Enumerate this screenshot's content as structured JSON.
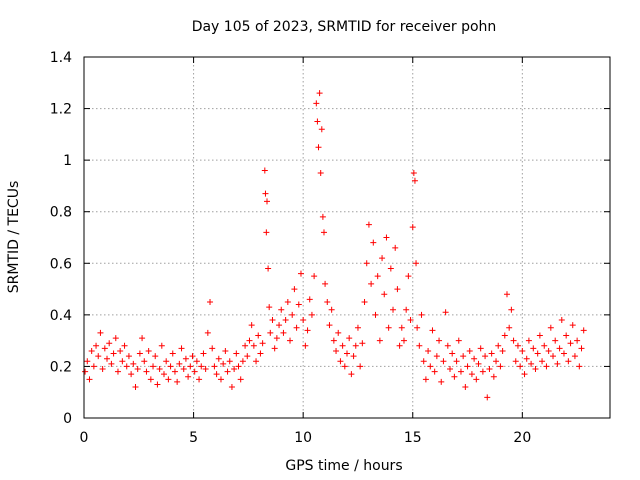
{
  "chart_data": {
    "type": "scatter",
    "title": "Day 105 of 2023, SRMTID for receiver pohn",
    "xlabel": "GPS time / hours",
    "ylabel": "SRMTID / TECUs",
    "xlim": [
      0,
      24
    ],
    "ylim": [
      0,
      1.4
    ],
    "xticks": [
      0,
      5,
      10,
      15,
      20
    ],
    "xtick_labels": [
      "0",
      "5",
      "10",
      "15",
      "20"
    ],
    "yticks": [
      0,
      0.2,
      0.4,
      0.6,
      0.8,
      1.0,
      1.2,
      1.4
    ],
    "ytick_labels": [
      "0",
      "0.2",
      "0.4",
      "0.6",
      "0.8",
      "1",
      "1.2",
      "1.4"
    ],
    "grid": true,
    "marker": "+",
    "marker_color": "#ff0000",
    "series": [
      {
        "name": "SRMTID",
        "points": [
          [
            0.05,
            0.18
          ],
          [
            0.15,
            0.22
          ],
          [
            0.25,
            0.15
          ],
          [
            0.35,
            0.26
          ],
          [
            0.45,
            0.2
          ],
          [
            0.55,
            0.28
          ],
          [
            0.65,
            0.24
          ],
          [
            0.75,
            0.33
          ],
          [
            0.85,
            0.19
          ],
          [
            0.95,
            0.27
          ],
          [
            1.05,
            0.23
          ],
          [
            1.15,
            0.29
          ],
          [
            1.25,
            0.21
          ],
          [
            1.35,
            0.25
          ],
          [
            1.45,
            0.31
          ],
          [
            1.55,
            0.18
          ],
          [
            1.65,
            0.26
          ],
          [
            1.75,
            0.22
          ],
          [
            1.85,
            0.28
          ],
          [
            1.95,
            0.2
          ],
          [
            2.05,
            0.24
          ],
          [
            2.15,
            0.17
          ],
          [
            2.25,
            0.21
          ],
          [
            2.35,
            0.12
          ],
          [
            2.45,
            0.19
          ],
          [
            2.55,
            0.25
          ],
          [
            2.65,
            0.31
          ],
          [
            2.75,
            0.22
          ],
          [
            2.85,
            0.18
          ],
          [
            2.95,
            0.26
          ],
          [
            3.05,
            0.15
          ],
          [
            3.15,
            0.2
          ],
          [
            3.25,
            0.24
          ],
          [
            3.35,
            0.13
          ],
          [
            3.45,
            0.19
          ],
          [
            3.55,
            0.28
          ],
          [
            3.65,
            0.17
          ],
          [
            3.75,
            0.22
          ],
          [
            3.85,
            0.15
          ],
          [
            3.95,
            0.2
          ],
          [
            4.05,
            0.25
          ],
          [
            4.15,
            0.18
          ],
          [
            4.25,
            0.14
          ],
          [
            4.35,
            0.21
          ],
          [
            4.45,
            0.27
          ],
          [
            4.55,
            0.19
          ],
          [
            4.65,
            0.23
          ],
          [
            4.75,
            0.16
          ],
          [
            4.85,
            0.2
          ],
          [
            4.95,
            0.24
          ],
          [
            5.05,
            0.18
          ],
          [
            5.15,
            0.22
          ],
          [
            5.25,
            0.15
          ],
          [
            5.35,
            0.2
          ],
          [
            5.45,
            0.25
          ],
          [
            5.55,
            0.19
          ],
          [
            5.65,
            0.33
          ],
          [
            5.75,
            0.45
          ],
          [
            5.85,
            0.27
          ],
          [
            5.95,
            0.2
          ],
          [
            6.05,
            0.17
          ],
          [
            6.15,
            0.23
          ],
          [
            6.25,
            0.15
          ],
          [
            6.35,
            0.21
          ],
          [
            6.45,
            0.26
          ],
          [
            6.55,
            0.18
          ],
          [
            6.65,
            0.22
          ],
          [
            6.75,
            0.12
          ],
          [
            6.85,
            0.19
          ],
          [
            6.95,
            0.25
          ],
          [
            7.05,
            0.2
          ],
          [
            7.15,
            0.15
          ],
          [
            7.25,
            0.22
          ],
          [
            7.35,
            0.28
          ],
          [
            7.45,
            0.24
          ],
          [
            7.55,
            0.3
          ],
          [
            7.65,
            0.36
          ],
          [
            7.75,
            0.28
          ],
          [
            7.85,
            0.22
          ],
          [
            7.95,
            0.32
          ],
          [
            8.05,
            0.25
          ],
          [
            8.15,
            0.29
          ],
          [
            8.25,
            0.96
          ],
          [
            8.28,
            0.87
          ],
          [
            8.32,
            0.72
          ],
          [
            8.35,
            0.84
          ],
          [
            8.4,
            0.58
          ],
          [
            8.45,
            0.43
          ],
          [
            8.5,
            0.33
          ],
          [
            8.6,
            0.38
          ],
          [
            8.7,
            0.27
          ],
          [
            8.8,
            0.31
          ],
          [
            8.9,
            0.36
          ],
          [
            9.0,
            0.42
          ],
          [
            9.1,
            0.33
          ],
          [
            9.2,
            0.38
          ],
          [
            9.3,
            0.45
          ],
          [
            9.4,
            0.3
          ],
          [
            9.5,
            0.4
          ],
          [
            9.6,
            0.5
          ],
          [
            9.7,
            0.35
          ],
          [
            9.8,
            0.44
          ],
          [
            9.9,
            0.56
          ],
          [
            10.0,
            0.38
          ],
          [
            10.1,
            0.28
          ],
          [
            10.2,
            0.34
          ],
          [
            10.3,
            0.46
          ],
          [
            10.4,
            0.4
          ],
          [
            10.5,
            0.55
          ],
          [
            10.6,
            1.22
          ],
          [
            10.65,
            1.15
          ],
          [
            10.7,
            1.05
          ],
          [
            10.75,
            1.26
          ],
          [
            10.8,
            0.95
          ],
          [
            10.85,
            1.12
          ],
          [
            10.9,
            0.78
          ],
          [
            10.95,
            0.72
          ],
          [
            11.0,
            0.52
          ],
          [
            11.1,
            0.45
          ],
          [
            11.2,
            0.36
          ],
          [
            11.3,
            0.42
          ],
          [
            11.4,
            0.3
          ],
          [
            11.5,
            0.26
          ],
          [
            11.6,
            0.33
          ],
          [
            11.7,
            0.22
          ],
          [
            11.8,
            0.28
          ],
          [
            11.9,
            0.2
          ],
          [
            12.0,
            0.25
          ],
          [
            12.1,
            0.31
          ],
          [
            12.2,
            0.17
          ],
          [
            12.3,
            0.24
          ],
          [
            12.4,
            0.28
          ],
          [
            12.5,
            0.35
          ],
          [
            12.6,
            0.2
          ],
          [
            12.7,
            0.29
          ],
          [
            12.8,
            0.45
          ],
          [
            12.9,
            0.6
          ],
          [
            13.0,
            0.75
          ],
          [
            13.1,
            0.52
          ],
          [
            13.2,
            0.68
          ],
          [
            13.3,
            0.4
          ],
          [
            13.4,
            0.55
          ],
          [
            13.5,
            0.3
          ],
          [
            13.6,
            0.62
          ],
          [
            13.7,
            0.48
          ],
          [
            13.8,
            0.7
          ],
          [
            13.9,
            0.35
          ],
          [
            14.0,
            0.58
          ],
          [
            14.1,
            0.42
          ],
          [
            14.2,
            0.66
          ],
          [
            14.3,
            0.5
          ],
          [
            14.4,
            0.28
          ],
          [
            14.5,
            0.35
          ],
          [
            14.6,
            0.3
          ],
          [
            14.7,
            0.42
          ],
          [
            14.8,
            0.55
          ],
          [
            14.9,
            0.38
          ],
          [
            15.0,
            0.74
          ],
          [
            15.05,
            0.95
          ],
          [
            15.1,
            0.92
          ],
          [
            15.15,
            0.6
          ],
          [
            15.2,
            0.35
          ],
          [
            15.3,
            0.28
          ],
          [
            15.4,
            0.4
          ],
          [
            15.5,
            0.22
          ],
          [
            15.6,
            0.15
          ],
          [
            15.7,
            0.26
          ],
          [
            15.8,
            0.2
          ],
          [
            15.9,
            0.34
          ],
          [
            16.0,
            0.18
          ],
          [
            16.1,
            0.24
          ],
          [
            16.2,
            0.3
          ],
          [
            16.3,
            0.14
          ],
          [
            16.4,
            0.22
          ],
          [
            16.5,
            0.41
          ],
          [
            16.6,
            0.28
          ],
          [
            16.7,
            0.19
          ],
          [
            16.8,
            0.25
          ],
          [
            16.9,
            0.16
          ],
          [
            17.0,
            0.22
          ],
          [
            17.1,
            0.3
          ],
          [
            17.2,
            0.18
          ],
          [
            17.3,
            0.24
          ],
          [
            17.4,
            0.12
          ],
          [
            17.5,
            0.2
          ],
          [
            17.6,
            0.26
          ],
          [
            17.7,
            0.17
          ],
          [
            17.8,
            0.23
          ],
          [
            17.9,
            0.15
          ],
          [
            18.0,
            0.21
          ],
          [
            18.1,
            0.27
          ],
          [
            18.2,
            0.18
          ],
          [
            18.3,
            0.24
          ],
          [
            18.4,
            0.08
          ],
          [
            18.5,
            0.19
          ],
          [
            18.6,
            0.25
          ],
          [
            18.7,
            0.16
          ],
          [
            18.8,
            0.22
          ],
          [
            18.9,
            0.28
          ],
          [
            19.0,
            0.2
          ],
          [
            19.1,
            0.26
          ],
          [
            19.2,
            0.32
          ],
          [
            19.3,
            0.48
          ],
          [
            19.4,
            0.35
          ],
          [
            19.5,
            0.42
          ],
          [
            19.6,
            0.3
          ],
          [
            19.7,
            0.22
          ],
          [
            19.8,
            0.28
          ],
          [
            19.9,
            0.2
          ],
          [
            20.0,
            0.26
          ],
          [
            20.1,
            0.17
          ],
          [
            20.2,
            0.23
          ],
          [
            20.3,
            0.3
          ],
          [
            20.4,
            0.21
          ],
          [
            20.5,
            0.27
          ],
          [
            20.6,
            0.19
          ],
          [
            20.7,
            0.25
          ],
          [
            20.8,
            0.32
          ],
          [
            20.9,
            0.22
          ],
          [
            21.0,
            0.28
          ],
          [
            21.1,
            0.2
          ],
          [
            21.2,
            0.26
          ],
          [
            21.3,
            0.35
          ],
          [
            21.4,
            0.24
          ],
          [
            21.5,
            0.3
          ],
          [
            21.6,
            0.21
          ],
          [
            21.7,
            0.27
          ],
          [
            21.8,
            0.38
          ],
          [
            21.9,
            0.25
          ],
          [
            22.0,
            0.32
          ],
          [
            22.1,
            0.22
          ],
          [
            22.2,
            0.29
          ],
          [
            22.3,
            0.36
          ],
          [
            22.4,
            0.24
          ],
          [
            22.5,
            0.3
          ],
          [
            22.6,
            0.2
          ],
          [
            22.7,
            0.27
          ],
          [
            22.8,
            0.34
          ]
        ]
      }
    ]
  }
}
